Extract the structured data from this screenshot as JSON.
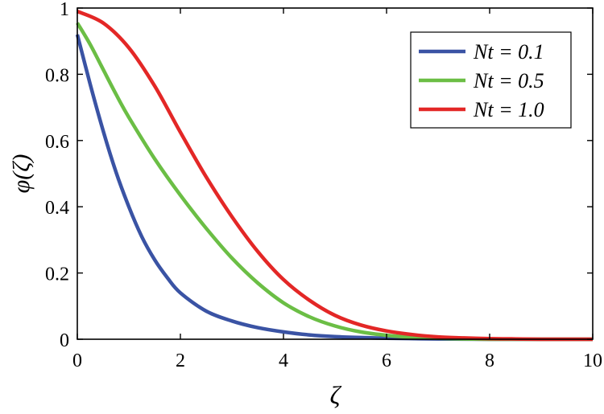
{
  "chart_data": {
    "type": "line",
    "title": "",
    "xlabel": "ζ",
    "ylabel": "φ(ζ)",
    "xlim": [
      0,
      10
    ],
    "ylim": [
      0,
      1
    ],
    "xticks": [
      "0",
      "2",
      "4",
      "6",
      "8",
      "10"
    ],
    "yticks": [
      "0",
      "0.2",
      "0.4",
      "0.6",
      "0.8",
      "1"
    ],
    "grid": false,
    "legend_position": "top-right",
    "series": [
      {
        "name": "Nt = 0.1",
        "color": "#3a53a4",
        "x": [
          0,
          0.25,
          0.5,
          0.75,
          1.0,
          1.25,
          1.5,
          1.75,
          2.0,
          2.5,
          3.0,
          3.5,
          4.0,
          4.5,
          5.0,
          5.5,
          6.0,
          7.0,
          8.0,
          9.0,
          10.0
        ],
        "y": [
          0.92,
          0.77,
          0.63,
          0.505,
          0.4,
          0.31,
          0.24,
          0.185,
          0.14,
          0.085,
          0.055,
          0.035,
          0.022,
          0.013,
          0.008,
          0.005,
          0.003,
          0.001,
          0.0,
          0.0,
          0.0
        ]
      },
      {
        "name": "Nt = 0.5",
        "color": "#6bbe45",
        "x": [
          0,
          0.25,
          0.5,
          0.75,
          1.0,
          1.5,
          2.0,
          2.5,
          3.0,
          3.5,
          4.0,
          4.5,
          5.0,
          5.5,
          6.0,
          6.5,
          7.0,
          7.5,
          8.0,
          9.0,
          10.0
        ],
        "y": [
          0.955,
          0.89,
          0.815,
          0.74,
          0.67,
          0.545,
          0.435,
          0.335,
          0.245,
          0.17,
          0.11,
          0.068,
          0.04,
          0.022,
          0.012,
          0.006,
          0.003,
          0.001,
          0.0,
          0.0,
          0.0
        ]
      },
      {
        "name": "Nt = 1.0",
        "color": "#e32726",
        "x": [
          0,
          0.5,
          1.0,
          1.5,
          2.0,
          2.5,
          3.0,
          3.5,
          4.0,
          4.5,
          5.0,
          5.5,
          6.0,
          6.5,
          7.0,
          7.5,
          8.0,
          8.5,
          9.0,
          10.0
        ],
        "y": [
          0.99,
          0.955,
          0.88,
          0.765,
          0.625,
          0.49,
          0.37,
          0.265,
          0.18,
          0.118,
          0.072,
          0.043,
          0.025,
          0.014,
          0.007,
          0.004,
          0.002,
          0.001,
          0.0,
          0.0
        ]
      }
    ]
  }
}
